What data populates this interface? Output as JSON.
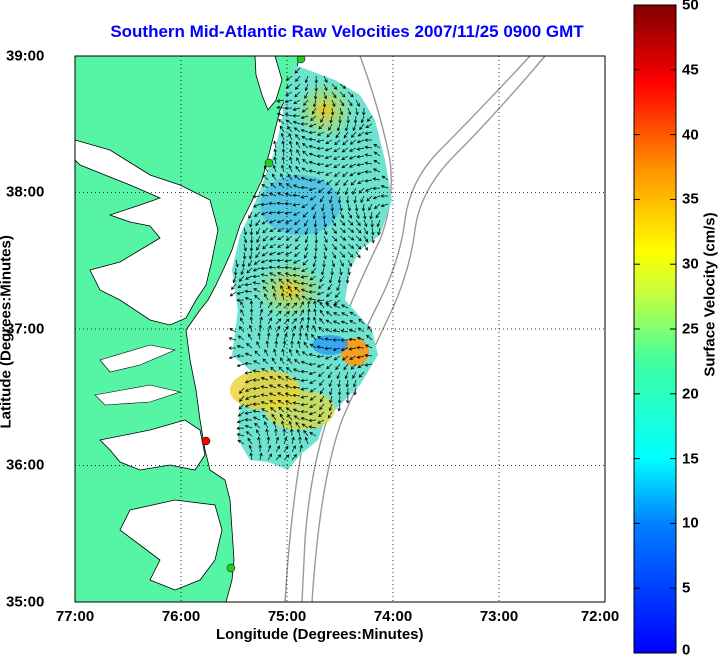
{
  "title": "Southern Mid-Atlantic Raw Velocities 2007/11/25 0900 GMT",
  "xaxis": {
    "label": "Longitude (Degrees:Minutes)",
    "ticks": [
      "77:00",
      "76:00",
      "75:00",
      "74:00",
      "73:00",
      "72:00"
    ]
  },
  "yaxis": {
    "label": "Latitude (Degrees:Minutes)",
    "ticks": [
      "39:00",
      "38:00",
      "37:00",
      "36:00",
      "35:00"
    ]
  },
  "colorbar": {
    "label": "Surface Velocity (cm/s)",
    "ticks": [
      "50",
      "45",
      "40",
      "35",
      "30",
      "25",
      "20",
      "15",
      "10",
      "5",
      "0"
    ],
    "range": [
      0,
      50
    ],
    "colormap": "jet"
  },
  "colors": {
    "land": "#55f5a5",
    "water": "#ffffff",
    "title": "#0000ff",
    "station_green": "#22cc22",
    "station_red": "#ff0000",
    "bathymetry": "#999999"
  },
  "map": {
    "lon_range": [
      -77,
      -72
    ],
    "lat_range": [
      35,
      39
    ],
    "grid": "dotted",
    "stations": [
      {
        "lon": -74.87,
        "lat": 38.98,
        "status": "green"
      },
      {
        "lon": -75.17,
        "lat": 38.22,
        "status": "green"
      },
      {
        "lon": -75.77,
        "lat": 36.18,
        "status": "red"
      },
      {
        "lon": -75.48,
        "lat": 35.25,
        "status": "green"
      }
    ]
  }
}
